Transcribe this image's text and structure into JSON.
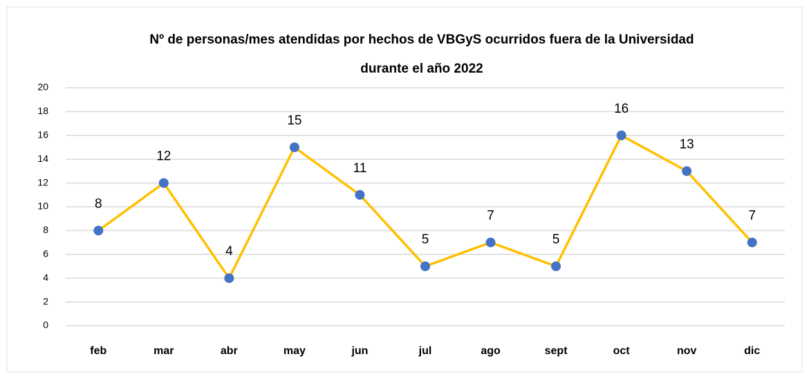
{
  "chart_data": {
    "type": "line",
    "title": [
      "Nº de personas/mes atendidas por hechos de VBGyS ocurridos fuera de la Universidad",
      "durante el año 2022"
    ],
    "categories": [
      "feb",
      "mar",
      "abr",
      "may",
      "jun",
      "jul",
      "ago",
      "sept",
      "oct",
      "nov",
      "dic"
    ],
    "series": [
      {
        "name": "personas",
        "color": "#FFC000",
        "marker_color": "#4472C4",
        "values": [
          8,
          12,
          4,
          15,
          11,
          5,
          7,
          5,
          16,
          13,
          7
        ]
      }
    ],
    "ylim": [
      0,
      20
    ],
    "yticks": [
      0,
      2,
      4,
      6,
      8,
      10,
      12,
      14,
      16,
      18,
      20
    ],
    "grid": true
  }
}
